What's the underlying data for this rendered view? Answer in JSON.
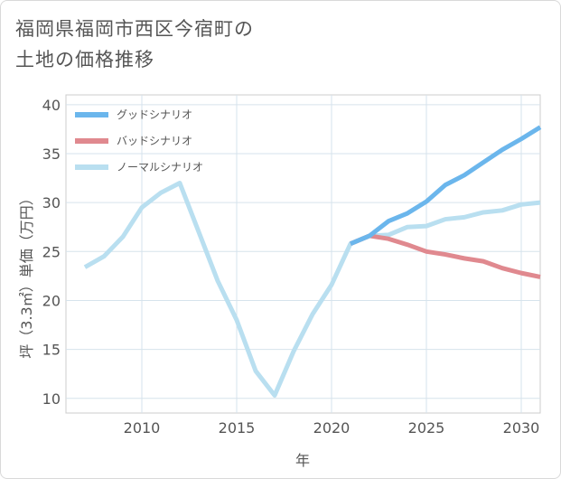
{
  "title_lines": [
    "福岡県福岡市西区今宿町の",
    "土地の価格推移"
  ],
  "chart_data": {
    "type": "line",
    "title": "福岡県福岡市西区今宿町の土地の価格推移",
    "xlabel": "年",
    "ylabel": "坪（3.3㎡）単価（万円）",
    "xlim": [
      2006,
      2031
    ],
    "ylim": [
      8.5,
      41
    ],
    "xticks": [
      2010,
      2015,
      2020,
      2025,
      2030
    ],
    "yticks": [
      10,
      15,
      20,
      25,
      30,
      35,
      40
    ],
    "grid": true,
    "legend_position": "top-left",
    "series": [
      {
        "name": "グッドシナリオ",
        "color": "#6bb6ec",
        "x": [
          2021,
          2022,
          2023,
          2024,
          2025,
          2026,
          2027,
          2028,
          2029,
          2030,
          2031
        ],
        "y": [
          25.8,
          26.6,
          28.1,
          28.9,
          30.1,
          31.8,
          32.8,
          34.1,
          35.4,
          36.5,
          37.7
        ]
      },
      {
        "name": "バッドシナリオ",
        "color": "#e0898f",
        "x": [
          2021,
          2022,
          2023,
          2024,
          2025,
          2026,
          2027,
          2028,
          2029,
          2030,
          2031
        ],
        "y": [
          25.8,
          26.6,
          26.3,
          25.7,
          25.0,
          24.7,
          24.3,
          24.0,
          23.3,
          22.8,
          22.4
        ]
      },
      {
        "name": "ノーマルシナリオ",
        "color": "#b9dff0",
        "x": [
          2007,
          2008,
          2009,
          2010,
          2011,
          2012,
          2013,
          2014,
          2015,
          2016,
          2017,
          2018,
          2019,
          2020,
          2021,
          2022,
          2023,
          2024,
          2025,
          2026,
          2027,
          2028,
          2029,
          2030,
          2031
        ],
        "y": [
          23.4,
          24.5,
          26.5,
          29.5,
          31.0,
          32.0,
          27.0,
          22.0,
          18.0,
          12.8,
          10.3,
          14.8,
          18.6,
          21.6,
          25.8,
          26.6,
          26.7,
          27.5,
          27.6,
          28.3,
          28.5,
          29.0,
          29.2,
          29.8,
          30.0
        ]
      }
    ]
  }
}
